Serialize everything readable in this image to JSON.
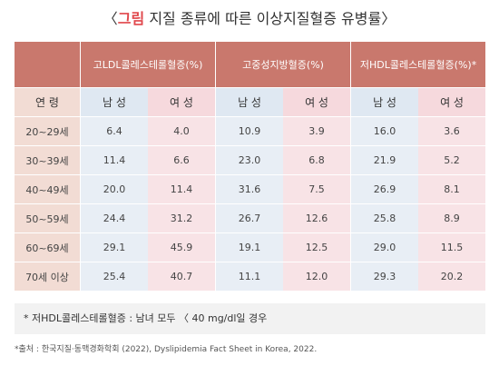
{
  "title": {
    "open_bracket": "〈",
    "accent": "그림",
    "rest": " 지질 종류에 따른 이상지질혈증 유병률",
    "close_bracket": "〉"
  },
  "table": {
    "groups": [
      "고LDL콜레스테롤혈증(%)",
      "고중성지방혈증(%)",
      "저HDL콜레스테롤혈증(%)*"
    ],
    "age_label": "연 령",
    "male_label": "남 성",
    "female_label": "여 성",
    "rows": [
      {
        "age": "20~29세",
        "values": [
          "6.4",
          "4.0",
          "10.9",
          "3.9",
          "16.0",
          "3.6"
        ]
      },
      {
        "age": "30~39세",
        "values": [
          "11.4",
          "6.6",
          "23.0",
          "6.8",
          "21.9",
          "5.2"
        ]
      },
      {
        "age": "40~49세",
        "values": [
          "20.0",
          "11.4",
          "31.6",
          "7.5",
          "26.9",
          "8.1"
        ]
      },
      {
        "age": "50~59세",
        "values": [
          "24.4",
          "31.2",
          "26.7",
          "12.6",
          "25.8",
          "8.9"
        ]
      },
      {
        "age": "60~69세",
        "values": [
          "29.1",
          "45.9",
          "19.1",
          "12.5",
          "29.0",
          "11.5"
        ]
      },
      {
        "age": "70세 이상",
        "values": [
          "25.4",
          "40.7",
          "11.1",
          "12.0",
          "29.3",
          "20.2"
        ]
      }
    ]
  },
  "note": "*  저HDL콜레스테롤혈증 : 남녀 모두 〈 40 mg/dl일 경우",
  "source": "*출처 : 한국지질·동맥경화학회 (2022), Dyslipidemia Fact Sheet   in Korea, 2022."
}
